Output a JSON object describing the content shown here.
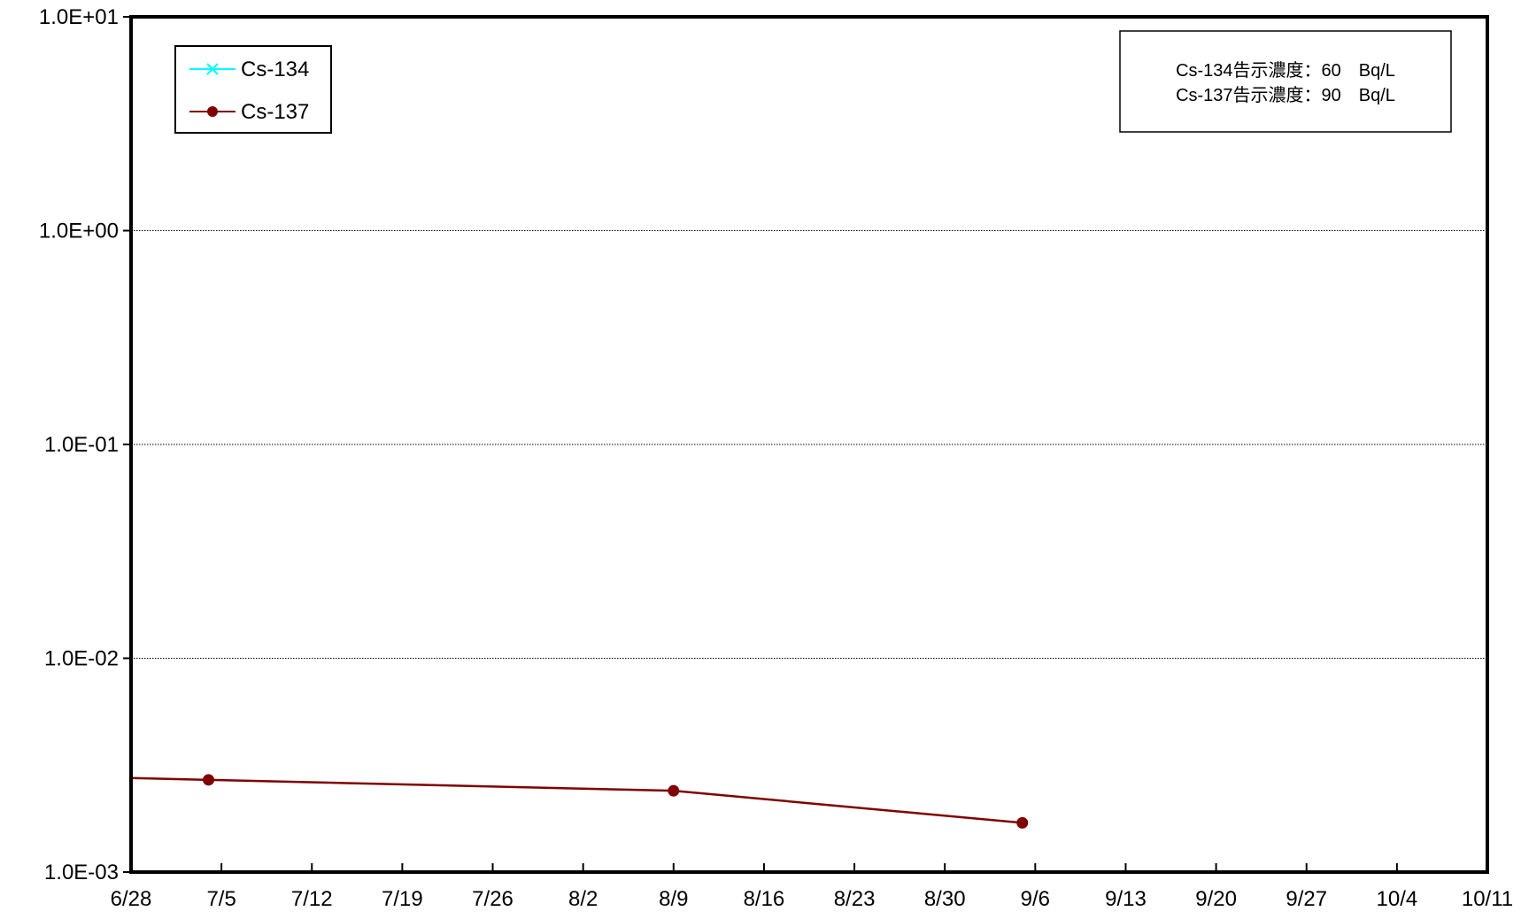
{
  "chart_data": {
    "type": "line",
    "title": "",
    "xlabel": "",
    "ylabel": "",
    "y_scale": "log",
    "ylim": [
      0.001,
      10
    ],
    "xlim": [
      "2011-06-28",
      "2011-10-11"
    ],
    "grid": "horizontal dotted lines at y tick values",
    "x_tick_labels": [
      "6/28",
      "7/5",
      "7/12",
      "7/19",
      "7/26",
      "8/2",
      "8/9",
      "8/16",
      "8/23",
      "8/30",
      "9/6",
      "9/13",
      "9/20",
      "9/27",
      "10/4",
      "10/11"
    ],
    "y_tick_labels": [
      "1.0E-03",
      "1.0E-02",
      "1.0E-01",
      "1.0E+00",
      "1.0E+01"
    ],
    "legend_position": "top-left",
    "series": [
      {
        "name": "Cs-134",
        "color": "#00FFFF",
        "marker": "x",
        "points": []
      },
      {
        "name": "Cs-137",
        "color": "#800000",
        "marker": "circle",
        "line_extends_past_left_edge": true,
        "points": [
          {
            "x": "2011-07-04",
            "y": 0.0027
          },
          {
            "x": "2011-08-09",
            "y": 0.0024
          },
          {
            "x": "2011-09-05",
            "y": 0.0017
          }
        ]
      }
    ],
    "annotation": {
      "lines": [
        "Cs-134告示濃度：60　Bq/L",
        "Cs-137告示濃度：90　Bq/L"
      ],
      "position": "top-right"
    }
  }
}
